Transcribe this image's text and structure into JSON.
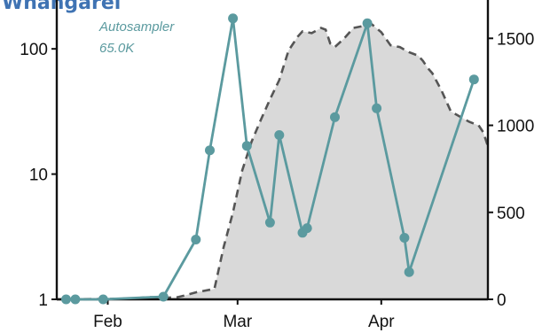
{
  "page_title": "Whangarei",
  "chart_data": {
    "type": "line",
    "x_type": "date",
    "xlim": [
      "2022-01-21",
      "2022-04-24"
    ],
    "x_ticks": [
      {
        "date": "2022-02-01",
        "label": "Feb"
      },
      {
        "date": "2022-03-01",
        "label": "Mar"
      },
      {
        "date": "2022-04-01",
        "label": "Apr"
      }
    ],
    "y_left": {
      "scale": "log",
      "lim": [
        1,
        230
      ],
      "ticks": [
        {
          "value": 1,
          "label": "1"
        },
        {
          "value": 10,
          "label": "10"
        },
        {
          "value": 100,
          "label": "100"
        }
      ]
    },
    "y_right": {
      "scale": "linear",
      "lim": [
        0,
        1700
      ],
      "ticks": [
        {
          "value": 0,
          "label": "0"
        },
        {
          "value": 500,
          "label": "500"
        },
        {
          "value": 1000,
          "label": "1000"
        },
        {
          "value": 1500,
          "label": "1500"
        }
      ]
    },
    "legend": {
      "placement": "top-left",
      "lines": [
        "Autosampler",
        "65.0K"
      ]
    },
    "grid": false,
    "series": [
      {
        "name": "Autosampler",
        "axis": "left",
        "style": "line-with-points",
        "color": "#5b9a9f",
        "points": [
          {
            "x": "2022-01-23",
            "y": 1
          },
          {
            "x": "2022-01-25",
            "y": 1
          },
          {
            "x": "2022-01-31",
            "y": 1
          },
          {
            "x": "2022-02-13",
            "y": 1.05
          },
          {
            "x": "2022-02-20",
            "y": 3
          },
          {
            "x": "2022-02-23",
            "y": 15.5
          },
          {
            "x": "2022-02-28",
            "y": 175
          },
          {
            "x": "2022-03-03",
            "y": 16.8
          },
          {
            "x": "2022-03-08",
            "y": 4.1
          },
          {
            "x": "2022-03-10",
            "y": 20.5
          },
          {
            "x": "2022-03-15",
            "y": 3.4
          },
          {
            "x": "2022-03-16",
            "y": 3.7
          },
          {
            "x": "2022-03-22",
            "y": 28.5
          },
          {
            "x": "2022-03-29",
            "y": 160
          },
          {
            "x": "2022-03-31",
            "y": 33.5
          },
          {
            "x": "2022-04-06",
            "y": 3.1
          },
          {
            "x": "2022-04-07",
            "y": 1.65
          },
          {
            "x": "2022-04-21",
            "y": 57
          }
        ]
      },
      {
        "axis": "right",
        "style": "dashed-area",
        "color": "#555555",
        "fill": "#d9d9d9",
        "points": [
          {
            "x": "2022-01-21",
            "y": 0
          },
          {
            "x": "2022-02-01",
            "y": 2
          },
          {
            "x": "2022-02-06",
            "y": 5
          },
          {
            "x": "2022-02-10",
            "y": 12
          },
          {
            "x": "2022-02-14",
            "y": 10
          },
          {
            "x": "2022-02-16",
            "y": 12
          },
          {
            "x": "2022-02-18",
            "y": 25
          },
          {
            "x": "2022-02-20",
            "y": 40
          },
          {
            "x": "2022-02-24",
            "y": 60
          },
          {
            "x": "2022-02-26",
            "y": 300
          },
          {
            "x": "2022-02-28",
            "y": 500
          },
          {
            "x": "2022-03-02",
            "y": 740
          },
          {
            "x": "2022-03-04",
            "y": 905
          },
          {
            "x": "2022-03-06",
            "y": 1030
          },
          {
            "x": "2022-03-08",
            "y": 1150
          },
          {
            "x": "2022-03-10",
            "y": 1260
          },
          {
            "x": "2022-03-12",
            "y": 1430
          },
          {
            "x": "2022-03-14",
            "y": 1510
          },
          {
            "x": "2022-03-15",
            "y": 1540
          },
          {
            "x": "2022-03-17",
            "y": 1530
          },
          {
            "x": "2022-03-19",
            "y": 1560
          },
          {
            "x": "2022-03-20",
            "y": 1550
          },
          {
            "x": "2022-03-21",
            "y": 1470
          },
          {
            "x": "2022-03-22",
            "y": 1450
          },
          {
            "x": "2022-03-24",
            "y": 1500
          },
          {
            "x": "2022-03-26",
            "y": 1560
          },
          {
            "x": "2022-03-28",
            "y": 1570
          },
          {
            "x": "2022-03-30",
            "y": 1580
          },
          {
            "x": "2022-04-01",
            "y": 1535
          },
          {
            "x": "2022-04-03",
            "y": 1460
          },
          {
            "x": "2022-04-05",
            "y": 1450
          },
          {
            "x": "2022-04-07",
            "y": 1420
          },
          {
            "x": "2022-04-09",
            "y": 1400
          },
          {
            "x": "2022-04-10",
            "y": 1370
          },
          {
            "x": "2022-04-11",
            "y": 1330
          },
          {
            "x": "2022-04-12",
            "y": 1300
          },
          {
            "x": "2022-04-14",
            "y": 1200
          },
          {
            "x": "2022-04-16",
            "y": 1080
          },
          {
            "x": "2022-04-18",
            "y": 1050
          },
          {
            "x": "2022-04-20",
            "y": 1020
          },
          {
            "x": "2022-04-22",
            "y": 1000
          },
          {
            "x": "2022-04-23",
            "y": 960
          },
          {
            "x": "2022-04-24",
            "y": 880
          }
        ]
      }
    ]
  }
}
